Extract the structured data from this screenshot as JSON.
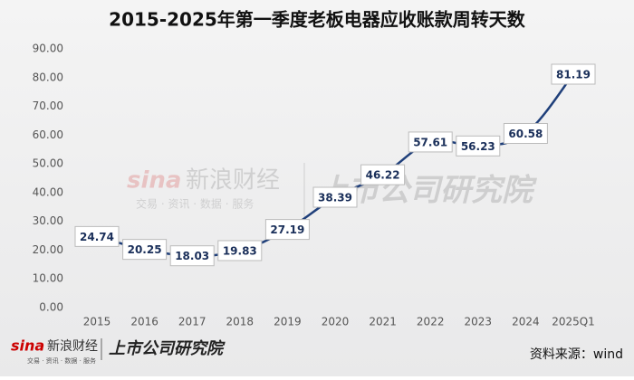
{
  "chart_data": {
    "type": "line",
    "title": "2015-2025年第一季度老板电器应收账款周转天数",
    "categories": [
      "2015",
      "2016",
      "2017",
      "2018",
      "2019",
      "2020",
      "2021",
      "2022",
      "2023",
      "2024",
      "2025Q1"
    ],
    "values": [
      24.74,
      20.25,
      18.03,
      19.83,
      27.19,
      38.39,
      46.22,
      57.61,
      56.23,
      60.58,
      81.19
    ],
    "color": "#1f3f7a",
    "ylim": [
      0,
      90
    ],
    "yticks": [
      {
        "value": 0,
        "label": "0.00"
      },
      {
        "value": 10,
        "label": "10.00"
      },
      {
        "value": 20,
        "label": "20.00"
      },
      {
        "value": 30,
        "label": "30.00"
      },
      {
        "value": 40,
        "label": "40.00"
      },
      {
        "value": 50,
        "label": "50.00"
      },
      {
        "value": 60,
        "label": "60.00"
      },
      {
        "value": 70,
        "label": "70.00"
      },
      {
        "value": 80,
        "label": "80.00"
      },
      {
        "value": 90,
        "label": "90.00"
      }
    ],
    "grid": false,
    "source": "资料来源：wind",
    "brand_sina": "新浪财经",
    "brand_sina_sub": "交易 · 资讯 · 数据 · 服务",
    "brand_institute": "上市公司研究院"
  }
}
